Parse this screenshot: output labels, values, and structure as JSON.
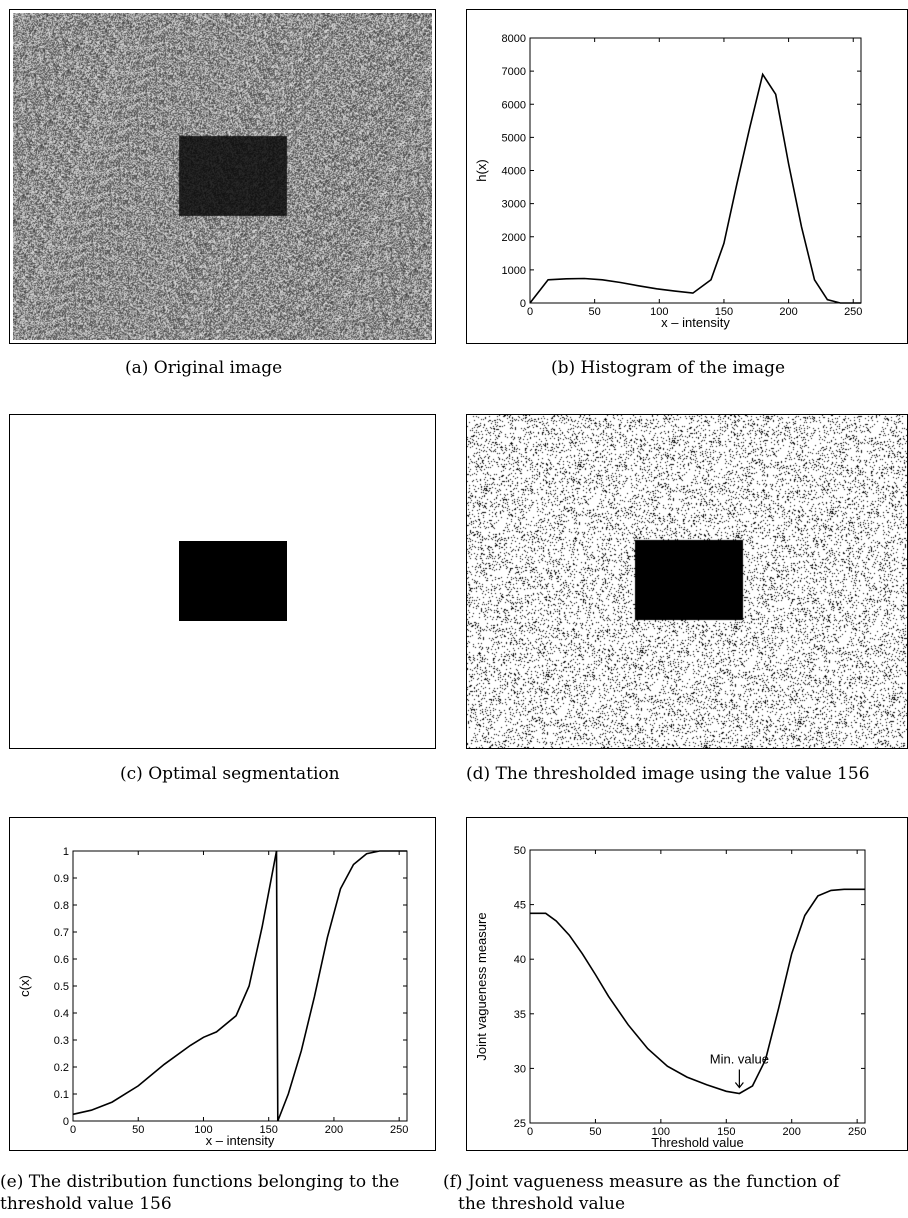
{
  "panels": {
    "a": {
      "caption": "(a) Original image"
    },
    "b": {
      "caption": "(b) Histogram of the image"
    },
    "c": {
      "caption": "(c) Optimal segmentation"
    },
    "d": {
      "caption": "(d) The thresholded image using the value 156"
    },
    "e": {
      "caption_line1": "(e) The distribution functions belonging to the",
      "caption_line2": "threshold value 156"
    },
    "f": {
      "caption_line1": "(f) Joint vagueness measure as the function of",
      "caption_line2": "the threshold value"
    }
  },
  "chart_data": [
    {
      "id": "b",
      "type": "line",
      "xlabel": "x – intensity",
      "ylabel": "h(x)",
      "xlim": [
        0,
        256
      ],
      "ylim": [
        0,
        8000
      ],
      "xticks": [
        0,
        50,
        100,
        150,
        200,
        250
      ],
      "yticks": [
        0,
        1000,
        2000,
        3000,
        4000,
        5000,
        6000,
        7000,
        8000
      ],
      "series": [
        {
          "x": [
            0,
            14,
            28,
            42,
            56,
            70,
            84,
            98,
            112,
            126,
            140,
            150,
            160,
            170,
            180,
            190,
            200,
            210,
            220,
            230,
            240,
            256
          ],
          "y": [
            0,
            700,
            730,
            740,
            700,
            620,
            520,
            430,
            360,
            300,
            700,
            1800,
            3600,
            5300,
            6900,
            6300,
            4200,
            2300,
            700,
            100,
            0,
            0
          ]
        }
      ]
    },
    {
      "id": "e",
      "type": "line",
      "xlabel": "x – intensity",
      "ylabel": "c(x)",
      "xlim": [
        0,
        256
      ],
      "ylim": [
        0,
        1
      ],
      "xticks": [
        0,
        50,
        100,
        150,
        200,
        250
      ],
      "yticks": [
        0,
        0.1,
        0.2,
        0.3,
        0.4,
        0.5,
        0.6,
        0.7,
        0.8,
        0.9,
        1
      ],
      "series": [
        {
          "x": [
            0,
            14,
            30,
            50,
            70,
            90,
            100,
            110,
            125,
            135,
            145,
            156
          ],
          "y": [
            0.025,
            0.04,
            0.07,
            0.13,
            0.21,
            0.28,
            0.31,
            0.33,
            0.39,
            0.5,
            0.72,
            1.0
          ]
        },
        {
          "x": [
            156,
            157,
            165,
            175,
            185,
            195,
            205,
            215,
            225,
            235,
            245,
            256
          ],
          "y": [
            1.0,
            0.0,
            0.1,
            0.26,
            0.46,
            0.68,
            0.86,
            0.95,
            0.99,
            1.0,
            1.0,
            1.0
          ]
        }
      ]
    },
    {
      "id": "f",
      "type": "line",
      "xlabel": "Threshold value",
      "ylabel": "Joint vagueness measure",
      "xlim": [
        0,
        256
      ],
      "ylim": [
        25,
        50
      ],
      "xticks": [
        0,
        50,
        100,
        150,
        200,
        250
      ],
      "yticks": [
        25,
        30,
        35,
        40,
        45,
        50
      ],
      "annotation": {
        "text": "Min. value",
        "x": 160,
        "y": 27.7
      },
      "series": [
        {
          "x": [
            0,
            12,
            20,
            30,
            40,
            50,
            60,
            75,
            90,
            105,
            120,
            135,
            150,
            160,
            170,
            180,
            190,
            200,
            210,
            220,
            230,
            240,
            256
          ],
          "y": [
            44.2,
            44.2,
            43.5,
            42.2,
            40.5,
            38.6,
            36.6,
            34.0,
            31.8,
            30.2,
            29.2,
            28.5,
            27.9,
            27.7,
            28.4,
            30.8,
            35.5,
            40.5,
            44.0,
            45.8,
            46.3,
            46.4,
            46.4
          ]
        }
      ]
    }
  ]
}
